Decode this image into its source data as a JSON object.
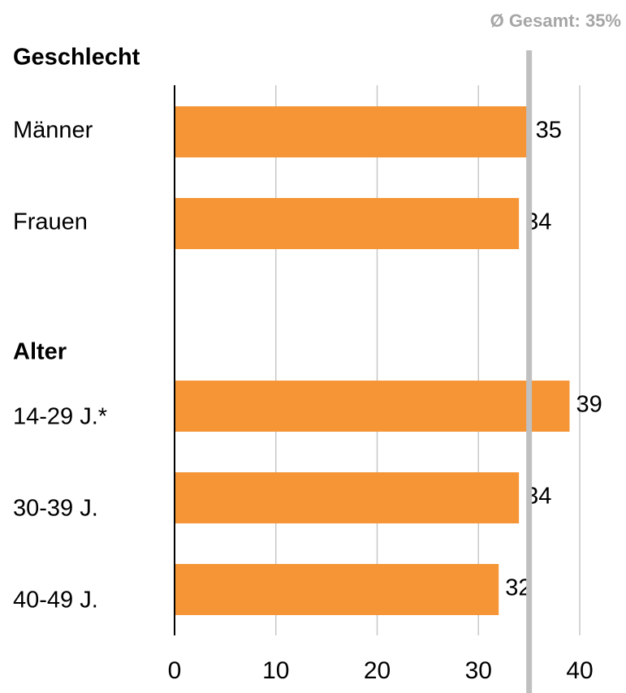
{
  "chart_data": {
    "type": "bar",
    "orientation": "horizontal",
    "annotation": "Ø Gesamt: 35%",
    "reference_line": {
      "value": 35,
      "color": "#c0c0c0"
    },
    "color": "#f59535",
    "groups": [
      {
        "name": "Geschlecht",
        "categories": [
          "Männer",
          "Frauen"
        ],
        "values": [
          35,
          34
        ]
      },
      {
        "name": "Alter",
        "categories": [
          "14-29 J.*",
          "30-39 J.",
          "40-49 J."
        ],
        "values": [
          39,
          34,
          32
        ]
      }
    ],
    "xlim": [
      0,
      40
    ],
    "xticks": [
      0,
      10,
      20,
      30,
      40
    ],
    "grid": true
  }
}
